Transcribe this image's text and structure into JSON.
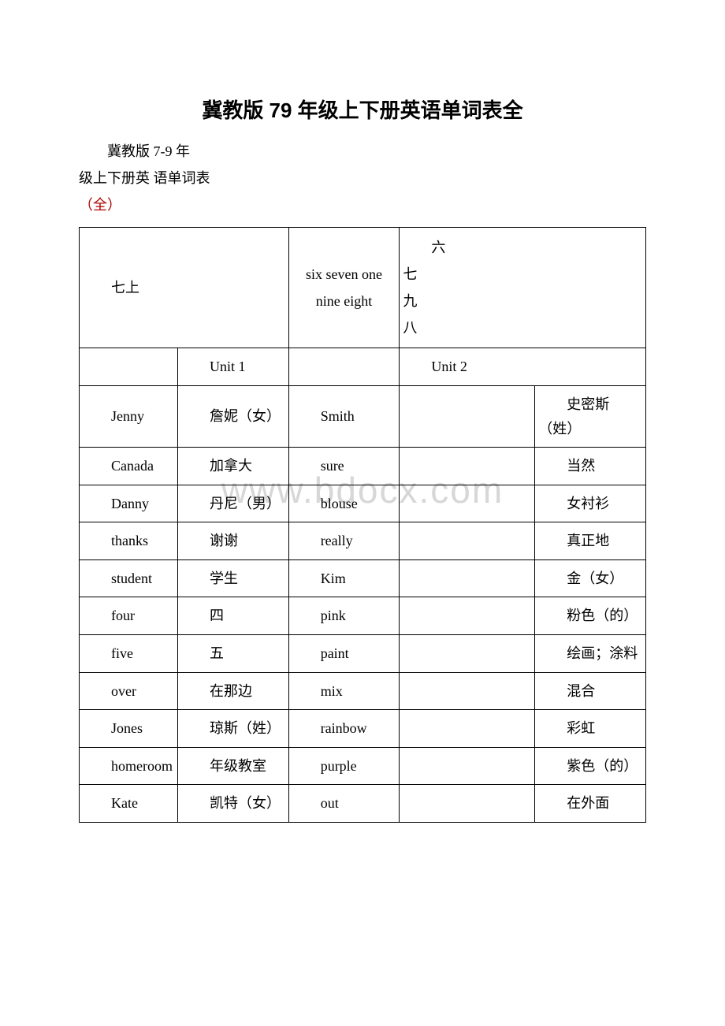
{
  "title": "冀教版 79 年级上下册英语单词表全",
  "intro": {
    "line1": "冀教版 7-9 年",
    "line2": "级上下册英 语单词表",
    "line3": "（全）"
  },
  "header_row": {
    "left": "七上",
    "mid": "six seven one nine eight",
    "right": "六\n七\n九\n八"
  },
  "unit_row": {
    "unit1": "Unit 1",
    "unit2": "Unit 2"
  },
  "rows": [
    {
      "en1": "Jenny",
      "cn1": "詹妮（女）",
      "en2": "Smith",
      "cn2": "史密斯（姓）"
    },
    {
      "en1": "Canada",
      "cn1": "加拿大",
      "en2": "sure",
      "cn2": "当然"
    },
    {
      "en1": "Danny",
      "cn1": "丹尼（男）",
      "en2": "blouse",
      "cn2": "女衬衫"
    },
    {
      "en1": "thanks",
      "cn1": "谢谢",
      "en2": "really",
      "cn2": "真正地"
    },
    {
      "en1": "student",
      "cn1": "学生",
      "en2": "Kim",
      "cn2": "金（女）"
    },
    {
      "en1": "four",
      "cn1": "四",
      "en2": "pink",
      "cn2": "粉色（的）"
    },
    {
      "en1": "five",
      "cn1": "五",
      "en2": "paint",
      "cn2": "绘画；涂料"
    },
    {
      "en1": "over",
      "cn1": "在那边",
      "en2": "mix",
      "cn2": "混合"
    },
    {
      "en1": "Jones",
      "cn1": "琼斯（姓）",
      "en2": "rainbow",
      "cn2": "彩虹"
    },
    {
      "en1": "homeroom",
      "cn1": "年级教室",
      "en2": "purple",
      "cn2": "紫色（的）"
    },
    {
      "en1": "Kate",
      "cn1": "凯特（女）",
      "en2": "out",
      "cn2": "在外面"
    }
  ],
  "watermark": "www.bdocx.com"
}
